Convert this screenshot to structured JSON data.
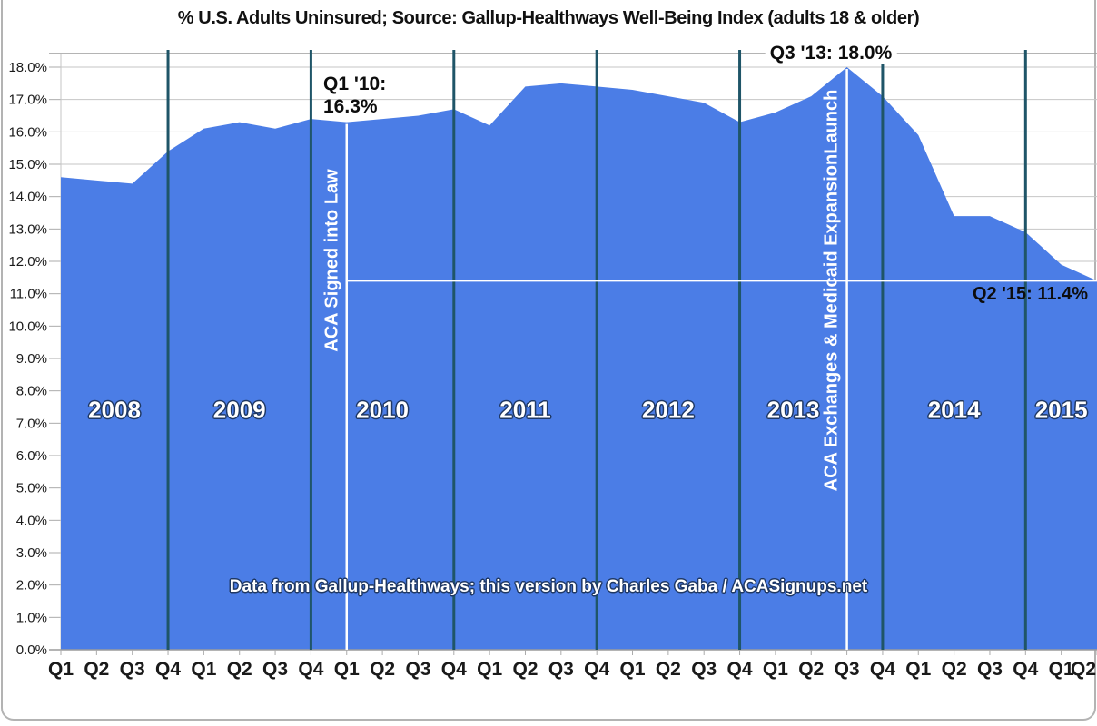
{
  "title": "% U.S. Adults Uninsured; Source: Gallup-Healthways Well-Being Index (adults 18 & older)",
  "footer": "Data from Gallup-Healthways; this version by Charles Gaba / ACASignups.net",
  "chart_data": {
    "type": "area",
    "title": "% U.S. Adults Uninsured; Source: Gallup-Healthways Well-Being Index (adults 18 & older)",
    "series_name": "% of U.S. adults uninsured",
    "x_labels": [
      "Q1",
      "Q2",
      "Q3",
      "Q4",
      "Q1",
      "Q2",
      "Q3",
      "Q4",
      "Q1",
      "Q2",
      "Q3",
      "Q4",
      "Q1",
      "Q2",
      "Q3",
      "Q4",
      "Q1",
      "Q2",
      "Q3",
      "Q4",
      "Q1",
      "Q2",
      "Q3",
      "Q4",
      "Q1",
      "Q2",
      "Q3",
      "Q4",
      "Q1",
      "Q2"
    ],
    "values": [
      14.6,
      14.5,
      14.4,
      15.4,
      16.1,
      16.3,
      16.1,
      16.4,
      16.3,
      16.4,
      16.5,
      16.7,
      16.2,
      17.4,
      17.5,
      17.4,
      17.3,
      17.1,
      16.9,
      16.3,
      16.6,
      17.1,
      18.0,
      17.1,
      15.9,
      13.4,
      13.4,
      12.9,
      11.9,
      11.4
    ],
    "years": [
      "2008",
      "2009",
      "2010",
      "2011",
      "2012",
      "2013",
      "2014",
      "2015"
    ],
    "ylim": [
      0,
      18
    ],
    "grid": true,
    "y_tick_labels": [
      "18.0%",
      "17.0%",
      "16.0%",
      "15.0%",
      "14.0%",
      "13.0%",
      "12.0%",
      "11.0%",
      "10.0%",
      "9.0%",
      "8.0%",
      "7.0%",
      "6.0%",
      "5.0%",
      "4.0%",
      "3.0%",
      "2.0%",
      "1.0%",
      "0.0%"
    ],
    "year_separator_indices": [
      3,
      7,
      11,
      15,
      19,
      23,
      27
    ],
    "event_lines": [
      {
        "label": "ACA Signed into Law",
        "quarter": "Q1 2010",
        "index": 8,
        "value": 16.3
      },
      {
        "label": "ACA Exchanges & Medicaid ExpansionLaunch",
        "quarter": "Q3 2013",
        "index": 22,
        "value": 18.0
      }
    ],
    "reference_line": {
      "value": 11.4,
      "start_index": 8
    },
    "annotations": {
      "aca_signed": "Q1 '10:\n16.3%",
      "peak": "Q3 '13: 18.0%",
      "latest": "Q2 '15: 11.4%"
    },
    "colors": {
      "area": "#4b7de6",
      "year_line": "#1f5568",
      "event_line": "#ffffff",
      "grid": "#c6c6c6",
      "axis": "#9c9c9c",
      "text": "#1a1a1a",
      "label_fill": "#ffffff",
      "label_outline": "#1f3864"
    }
  }
}
